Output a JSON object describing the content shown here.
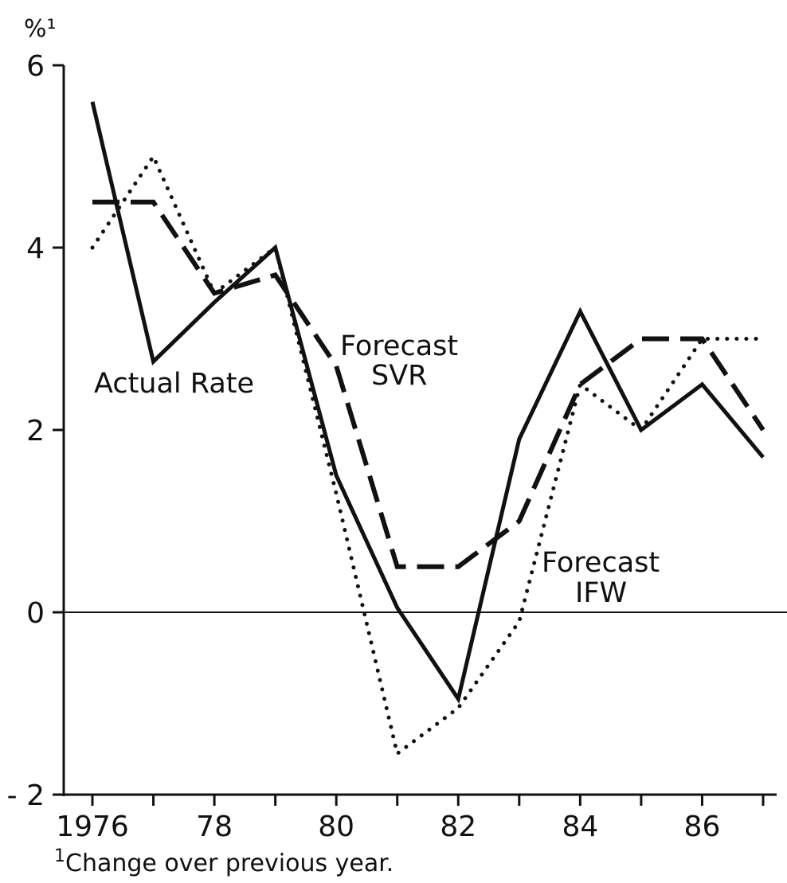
{
  "chart_data": {
    "type": "line",
    "ylabel": "%¹",
    "ylim": [
      -2,
      6
    ],
    "xlim": [
      1975.6,
      1987.4
    ],
    "yticks": [
      {
        "value": 6,
        "label": "6"
      },
      {
        "value": 4,
        "label": "4"
      },
      {
        "value": 2,
        "label": "2"
      },
      {
        "value": 0,
        "label": "0"
      },
      {
        "value": -2,
        "label": "- 2"
      }
    ],
    "xticks": [
      {
        "value": 1976,
        "label": "1976"
      },
      {
        "value": 1978,
        "label": "78"
      },
      {
        "value": 1980,
        "label": "80"
      },
      {
        "value": 1982,
        "label": "82"
      },
      {
        "value": 1984,
        "label": "84"
      },
      {
        "value": 1986,
        "label": "86"
      }
    ],
    "grid": false,
    "zero_line": true,
    "series": [
      {
        "name": "Actual Rate",
        "style": "solid",
        "x": [
          1976,
          1977,
          1978,
          1979,
          1980,
          1981,
          1982,
          1983,
          1984,
          1985,
          1986,
          1987
        ],
        "values": [
          5.6,
          2.75,
          3.4,
          4.0,
          1.5,
          0.05,
          -0.95,
          1.9,
          3.3,
          2.0,
          2.5,
          1.7
        ]
      },
      {
        "name": "Forecast SVR",
        "style": "dashed",
        "x": [
          1976,
          1977,
          1978,
          1979,
          1980,
          1981,
          1982,
          1983,
          1984,
          1985,
          1986,
          1987
        ],
        "values": [
          4.5,
          4.5,
          3.5,
          3.7,
          2.7,
          0.5,
          0.5,
          1.0,
          2.5,
          3.0,
          3.0,
          2.0
        ]
      },
      {
        "name": "Forecast IFW",
        "style": "dotted",
        "x": [
          1976,
          1977,
          1978,
          1979,
          1980,
          1981,
          1982,
          1983,
          1984,
          1985,
          1986,
          1987
        ],
        "values": [
          4.0,
          5.0,
          3.5,
          4.0,
          1.3,
          -1.55,
          -1.05,
          -0.1,
          2.5,
          2.0,
          3.0,
          3.0
        ]
      }
    ],
    "annotations": {
      "actual": "Actual Rate",
      "svr_line1": "Forecast",
      "svr_line2": "SVR",
      "ifw_line1": "Forecast",
      "ifw_line2": "IFW"
    },
    "footnote_mark": "1",
    "footnote": "Change over previous year."
  }
}
